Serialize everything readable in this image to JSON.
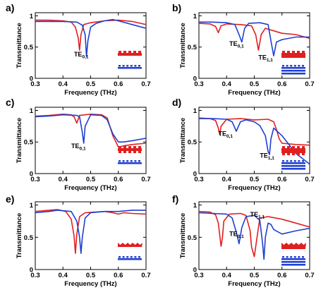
{
  "chart_data": [
    {
      "type": "line",
      "panel_label": "a)",
      "xlabel": "Frequency (THz)",
      "ylabel": "Transmittance",
      "xlim": [
        0.3,
        0.7
      ],
      "ylim": [
        0,
        1.05
      ],
      "xticks": [
        "0.3",
        "0.4",
        "0.5",
        "0.6",
        "0.7"
      ],
      "yticks": [
        "0",
        "0.5",
        "1"
      ],
      "grid": false,
      "series": [
        {
          "color": "#e02020",
          "x": [
            0.3,
            0.35,
            0.4,
            0.43,
            0.445,
            0.455,
            0.46,
            0.465,
            0.475,
            0.5,
            0.55,
            0.6,
            0.65,
            0.7
          ],
          "y": [
            0.93,
            0.93,
            0.92,
            0.9,
            0.82,
            0.65,
            0.45,
            0.7,
            0.86,
            0.89,
            0.92,
            0.93,
            0.91,
            0.86
          ]
        },
        {
          "color": "#1f3fd0",
          "x": [
            0.3,
            0.35,
            0.4,
            0.45,
            0.47,
            0.48,
            0.485,
            0.49,
            0.5,
            0.52,
            0.55,
            0.58,
            0.6,
            0.65,
            0.7
          ],
          "y": [
            0.91,
            0.91,
            0.91,
            0.9,
            0.85,
            0.7,
            0.35,
            0.6,
            0.82,
            0.88,
            0.92,
            0.94,
            0.92,
            0.86,
            0.8
          ]
        }
      ],
      "annotations": [
        {
          "text": "TE",
          "sub": "0,1",
          "x": 0.44,
          "y": 0.35
        }
      ],
      "inset": {
        "red": "corrugated-top",
        "blue": "corrugated-dotted"
      }
    },
    {
      "type": "line",
      "panel_label": "b)",
      "xlabel": "Frequency (THz)",
      "ylabel": "Transmittance",
      "xlim": [
        0.3,
        0.7
      ],
      "ylim": [
        0,
        1.05
      ],
      "xticks": [
        "0.3",
        "0.4",
        "0.5",
        "0.6",
        "0.7"
      ],
      "yticks": [
        "0",
        "0.5",
        "1"
      ],
      "grid": false,
      "series": [
        {
          "color": "#e02020",
          "x": [
            0.3,
            0.34,
            0.36,
            0.37,
            0.38,
            0.4,
            0.45,
            0.49,
            0.505,
            0.515,
            0.525,
            0.54,
            0.57,
            0.6,
            0.65,
            0.7
          ],
          "y": [
            0.88,
            0.87,
            0.83,
            0.73,
            0.84,
            0.87,
            0.86,
            0.84,
            0.7,
            0.45,
            0.7,
            0.8,
            0.76,
            0.72,
            0.7,
            0.64
          ]
        },
        {
          "color": "#1f3fd0",
          "x": [
            0.3,
            0.35,
            0.4,
            0.43,
            0.445,
            0.455,
            0.465,
            0.48,
            0.52,
            0.55,
            0.56,
            0.57,
            0.58,
            0.6,
            0.65,
            0.7
          ],
          "y": [
            0.9,
            0.9,
            0.89,
            0.86,
            0.7,
            0.58,
            0.8,
            0.88,
            0.89,
            0.86,
            0.6,
            0.36,
            0.58,
            0.62,
            0.66,
            0.66
          ]
        }
      ],
      "annotations": [
        {
          "text": "TE",
          "sub": "0,1",
          "x": 0.41,
          "y": 0.52
        },
        {
          "text": "TE",
          "sub": "1,1",
          "x": 0.515,
          "y": 0.3
        }
      ],
      "inset": {
        "red": "thick-corrugated",
        "blue": "corrugated-multilayer"
      }
    },
    {
      "type": "line",
      "panel_label": "c)",
      "xlabel": "Frequency (THz)",
      "ylabel": "Transmittance",
      "xlim": [
        0.3,
        0.7
      ],
      "ylim": [
        0,
        1.05
      ],
      "xticks": [
        "0.3",
        "0.4",
        "0.5",
        "0.6",
        "0.7"
      ],
      "yticks": [
        "0",
        "0.5",
        "1"
      ],
      "grid": false,
      "series": [
        {
          "color": "#e02020",
          "x": [
            0.3,
            0.35,
            0.4,
            0.43,
            0.44,
            0.45,
            0.46,
            0.5,
            0.54,
            0.56,
            0.58,
            0.6,
            0.62,
            0.65,
            0.7
          ],
          "y": [
            0.91,
            0.92,
            0.94,
            0.93,
            0.9,
            0.8,
            0.92,
            0.94,
            0.93,
            0.88,
            0.6,
            0.42,
            0.44,
            0.46,
            0.48
          ]
        },
        {
          "color": "#1f3fd0",
          "x": [
            0.3,
            0.35,
            0.4,
            0.45,
            0.46,
            0.47,
            0.475,
            0.48,
            0.5,
            0.54,
            0.56,
            0.58,
            0.6,
            0.62,
            0.65,
            0.7
          ],
          "y": [
            0.9,
            0.91,
            0.93,
            0.92,
            0.9,
            0.65,
            0.48,
            0.75,
            0.93,
            0.92,
            0.85,
            0.63,
            0.5,
            0.5,
            0.52,
            0.56
          ]
        }
      ],
      "annotations": [
        {
          "text": "TE",
          "sub": "0,1",
          "x": 0.43,
          "y": 0.4
        }
      ],
      "inset": {
        "red": "double-corrugated",
        "blue": "double-corrugated-dotted"
      }
    },
    {
      "type": "line",
      "panel_label": "d)",
      "xlabel": "Frequency (THz)",
      "ylabel": "Transmittance",
      "xlim": [
        0.3,
        0.7
      ],
      "ylim": [
        0,
        1.05
      ],
      "xticks": [
        "0.3",
        "0.4",
        "0.5",
        "0.6",
        "0.7"
      ],
      "yticks": [
        "0",
        "0.5",
        "1"
      ],
      "grid": false,
      "series": [
        {
          "color": "#e02020",
          "x": [
            0.3,
            0.34,
            0.36,
            0.37,
            0.375,
            0.38,
            0.4,
            0.45,
            0.5,
            0.55,
            0.57,
            0.58,
            0.59,
            0.6,
            0.65,
            0.7
          ],
          "y": [
            0.88,
            0.87,
            0.84,
            0.72,
            0.62,
            0.75,
            0.86,
            0.87,
            0.85,
            0.86,
            0.82,
            0.7,
            0.55,
            0.48,
            0.46,
            0.45
          ]
        },
        {
          "color": "#1f3fd0",
          "x": [
            0.3,
            0.35,
            0.4,
            0.42,
            0.435,
            0.45,
            0.47,
            0.5,
            0.52,
            0.54,
            0.55,
            0.555,
            0.56,
            0.57,
            0.6,
            0.65,
            0.7
          ],
          "y": [
            0.87,
            0.87,
            0.86,
            0.82,
            0.67,
            0.82,
            0.85,
            0.82,
            0.76,
            0.6,
            0.35,
            0.3,
            0.55,
            0.72,
            0.6,
            0.32,
            0.15
          ]
        }
      ],
      "annotations": [
        {
          "text": "TE",
          "sub": "0,1",
          "x": 0.37,
          "y": 0.6
        },
        {
          "text": "TE",
          "sub": "1,1",
          "x": 0.52,
          "y": 0.25
        }
      ],
      "inset": {
        "red": "thick-double-corrugated",
        "blue": "double-corrugated-multilayer"
      }
    },
    {
      "type": "line",
      "panel_label": "e)",
      "xlabel": "Frequency (THz)",
      "ylabel": "Transmittance",
      "xlim": [
        0.3,
        0.7
      ],
      "ylim": [
        0,
        1.05
      ],
      "xticks": [
        "0.3",
        "0.4",
        "0.5",
        "0.6",
        "0.7"
      ],
      "yticks": [
        "0",
        "0.5",
        "1"
      ],
      "grid": false,
      "series": [
        {
          "color": "#e02020",
          "x": [
            0.3,
            0.35,
            0.38,
            0.41,
            0.43,
            0.44,
            0.445,
            0.45,
            0.46,
            0.48,
            0.55,
            0.58,
            0.6,
            0.62,
            0.65,
            0.7
          ],
          "y": [
            0.9,
            0.92,
            0.93,
            0.9,
            0.78,
            0.52,
            0.25,
            0.55,
            0.82,
            0.88,
            0.9,
            0.88,
            0.86,
            0.88,
            0.87,
            0.86
          ]
        },
        {
          "color": "#1f3fd0",
          "x": [
            0.3,
            0.35,
            0.38,
            0.43,
            0.45,
            0.46,
            0.465,
            0.47,
            0.48,
            0.5,
            0.55,
            0.58,
            0.6,
            0.65,
            0.7
          ],
          "y": [
            0.88,
            0.9,
            0.92,
            0.9,
            0.75,
            0.5,
            0.25,
            0.5,
            0.8,
            0.88,
            0.9,
            0.9,
            0.9,
            0.92,
            0.92
          ]
        }
      ],
      "annotations": [],
      "inset": {
        "red": "sawtooth",
        "blue": "sawtooth-dotted"
      }
    },
    {
      "type": "line",
      "panel_label": "f)",
      "xlabel": "Frequency (THz)",
      "ylabel": "Transmittance",
      "xlim": [
        0.3,
        0.7
      ],
      "ylim": [
        0,
        1.05
      ],
      "xticks": [
        "0.3",
        "0.4",
        "0.5",
        "0.6",
        "0.7"
      ],
      "yticks": [
        "0",
        "0.5",
        "1"
      ],
      "grid": false,
      "series": [
        {
          "color": "#e02020",
          "x": [
            0.3,
            0.34,
            0.36,
            0.37,
            0.38,
            0.385,
            0.39,
            0.41,
            0.45,
            0.47,
            0.485,
            0.49,
            0.5,
            0.51,
            0.52,
            0.55,
            0.6,
            0.65,
            0.7
          ],
          "y": [
            0.9,
            0.89,
            0.85,
            0.72,
            0.36,
            0.5,
            0.75,
            0.86,
            0.87,
            0.84,
            0.6,
            0.35,
            0.2,
            0.5,
            0.8,
            0.82,
            0.78,
            0.72,
            0.66
          ]
        },
        {
          "color": "#1f3fd0",
          "x": [
            0.3,
            0.35,
            0.4,
            0.42,
            0.435,
            0.445,
            0.455,
            0.47,
            0.5,
            0.52,
            0.53,
            0.535,
            0.54,
            0.55,
            0.56,
            0.57,
            0.6,
            0.65,
            0.7
          ],
          "y": [
            0.88,
            0.87,
            0.86,
            0.8,
            0.58,
            0.4,
            0.65,
            0.82,
            0.84,
            0.76,
            0.4,
            0.16,
            0.5,
            0.72,
            0.7,
            0.62,
            0.55,
            0.6,
            0.64
          ]
        }
      ],
      "annotations": [
        {
          "text": "TE",
          "sub": "0,1",
          "x": 0.41,
          "y": 0.52
        },
        {
          "text": "TE",
          "sub": "1,1",
          "x": 0.485,
          "y": 0.82
        }
      ],
      "inset": {
        "red": "thick-sawtooth",
        "blue": "sawtooth-multilayer"
      }
    }
  ]
}
